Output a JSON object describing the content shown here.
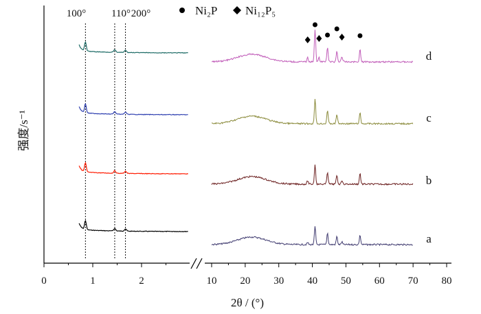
{
  "chart_data": {
    "type": "line",
    "xlabel": "2θ / (°)",
    "ylabel": "强度/s⁻¹",
    "axis_break": true,
    "low_angle_panel": {
      "xlim": [
        0,
        3
      ],
      "ticks": [
        "0",
        "1",
        "2"
      ],
      "reflections": [
        {
          "label": "100°",
          "x": 0.85
        },
        {
          "label": "110°",
          "x": 1.45
        },
        {
          "label": "200°",
          "x": 1.67
        }
      ]
    },
    "wide_angle_panel": {
      "xlim": [
        10,
        80
      ],
      "ticks": [
        "10",
        "20",
        "30",
        "40",
        "50",
        "60",
        "70",
        "80"
      ],
      "markers": [
        {
          "shape": "diamond",
          "x": 38.6
        },
        {
          "shape": "circle",
          "x": 40.8
        },
        {
          "shape": "diamond",
          "x": 42.0
        },
        {
          "shape": "circle",
          "x": 44.5
        },
        {
          "shape": "circle",
          "x": 47.3
        },
        {
          "shape": "diamond",
          "x": 48.8
        },
        {
          "shape": "circle",
          "x": 54.2
        }
      ]
    },
    "legend": [
      {
        "symbol": "circle",
        "name": "Ni₂P"
      },
      {
        "symbol": "diamond",
        "name": "Ni₁₂P₅"
      }
    ],
    "series": [
      {
        "label": "a",
        "color": "#000000",
        "color_wide": "#3f3a6f",
        "low_peaks": [
          0.85,
          1.45,
          1.67
        ],
        "wide_peaks": [
          {
            "x": 40.8,
            "h": 26
          },
          {
            "x": 44.5,
            "h": 17
          },
          {
            "x": 47.3,
            "h": 12
          },
          {
            "x": 54.2,
            "h": 14
          },
          {
            "x": 48.8,
            "h": 4
          },
          {
            "x": 38.6,
            "h": 3
          }
        ]
      },
      {
        "label": "b",
        "color": "#ff1a00",
        "color_wide": "#6b1f1f",
        "low_peaks": [
          0.85,
          1.45,
          1.67
        ],
        "wide_peaks": [
          {
            "x": 40.8,
            "h": 28
          },
          {
            "x": 44.5,
            "h": 18
          },
          {
            "x": 47.3,
            "h": 13
          },
          {
            "x": 54.2,
            "h": 16
          },
          {
            "x": 48.8,
            "h": 6
          },
          {
            "x": 38.6,
            "h": 5
          }
        ]
      },
      {
        "label": "c",
        "color": "#2e3fb0",
        "color_wide": "#8a8a3a",
        "low_peaks": [
          0.85,
          1.45,
          1.67
        ],
        "wide_peaks": [
          {
            "x": 40.8,
            "h": 36
          },
          {
            "x": 44.5,
            "h": 20
          },
          {
            "x": 47.3,
            "h": 14
          },
          {
            "x": 54.2,
            "h": 16
          }
        ]
      },
      {
        "label": "d",
        "color": "#1d6b66",
        "color_wide": "#c05bb8",
        "low_peaks": [
          0.85,
          1.45,
          1.67
        ],
        "wide_peaks": [
          {
            "x": 40.8,
            "h": 48
          },
          {
            "x": 44.5,
            "h": 22
          },
          {
            "x": 47.3,
            "h": 16
          },
          {
            "x": 54.2,
            "h": 18
          },
          {
            "x": 48.8,
            "h": 8
          },
          {
            "x": 38.6,
            "h": 6
          },
          {
            "x": 42.0,
            "h": 6
          }
        ]
      }
    ]
  }
}
